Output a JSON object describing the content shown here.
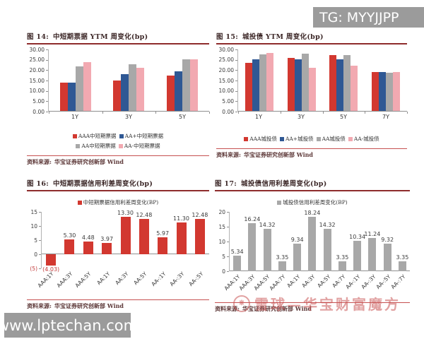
{
  "watermarks": {
    "top_right": "TG: MYYJJPP",
    "bottom_left": "www.lptechan.com",
    "bottom_right": "雪球—华宝财富魔方"
  },
  "colors": {
    "aaa_red": "#d23830",
    "aap_blue": "#2f5894",
    "aa_gray": "#a8a8a8",
    "aam_pink": "#f2a9b1",
    "title_rule": "#8e2c2c",
    "source_rule": "#c65050",
    "negative_label": "#c23b3b",
    "watermark_bg": "#9b9b9b",
    "watermark_text": "#ffffff"
  },
  "chart_data": [
    {
      "type": "bar",
      "fig_label": "图 14:",
      "title": "中短期票据 YTM 周变化(bp)",
      "categories": [
        "1Y",
        "3Y",
        "5Y"
      ],
      "series": [
        {
          "name": "AAA中短期票据",
          "color": "#d23830",
          "values": [
            14.0,
            15.0,
            17.4
          ]
        },
        {
          "name": "AA+中短期票据",
          "color": "#2f5894",
          "values": [
            14.0,
            18.0,
            19.3
          ]
        },
        {
          "name": "AA中短期票据",
          "color": "#a8a8a8",
          "values": [
            21.9,
            23.0,
            25.3
          ]
        },
        {
          "name": "AA-中短期票据",
          "color": "#f2a9b1",
          "values": [
            24.0,
            21.1,
            25.3
          ]
        }
      ],
      "ylim": [
        0,
        30
      ],
      "yticks": [
        {
          "v": 30,
          "label": "30.00"
        },
        {
          "v": 25,
          "label": "25.00"
        },
        {
          "v": 20,
          "label": "20.00"
        },
        {
          "v": 15,
          "label": "15.00"
        },
        {
          "v": 10,
          "label": "10.00"
        },
        {
          "v": 5,
          "label": "5.00"
        },
        {
          "v": 0,
          "label": "0.00"
        }
      ],
      "legend_rows": 2,
      "legend_position": "bottom",
      "grid": false,
      "source_label": "资料来源:",
      "source_text": "华宝证券研究创新部  Wind"
    },
    {
      "type": "bar",
      "fig_label": "图 15:",
      "title": "城投债 YTM 周变化(bp)",
      "categories": [
        "1Y",
        "3Y",
        "5Y",
        "7Y"
      ],
      "series": [
        {
          "name": "AAA城投债",
          "color": "#d23830",
          "values": [
            23.4,
            26.0,
            27.3,
            19.0
          ]
        },
        {
          "name": "AA+城投债",
          "color": "#2f5894",
          "values": [
            25.3,
            25.2,
            25.3,
            19.0
          ]
        },
        {
          "name": "AA城投债",
          "color": "#a8a8a8",
          "values": [
            27.5,
            27.9,
            27.2,
            18.8
          ]
        },
        {
          "name": "AA-城投债",
          "color": "#f2a9b1",
          "values": [
            28.3,
            21.1,
            22.3,
            19.0
          ]
        }
      ],
      "ylim": [
        0,
        30
      ],
      "yticks": [
        {
          "v": 30,
          "label": "30.00"
        },
        {
          "v": 25,
          "label": "25.00"
        },
        {
          "v": 20,
          "label": "20.00"
        },
        {
          "v": 15,
          "label": "15.00"
        },
        {
          "v": 10,
          "label": "10.00"
        },
        {
          "v": 5,
          "label": "5.00"
        },
        {
          "v": 0,
          "label": "0.00"
        }
      ],
      "legend_rows": 1,
      "legend_position": "bottom",
      "grid": false,
      "source_label": "资料来源:",
      "source_text": "华宝证券研究创新部  Wind"
    },
    {
      "type": "bar",
      "fig_label": "图 16:",
      "title": "中短期票据信用利差周变化(bp)",
      "legend": "中短期票据信用利差周变化(BP)",
      "bar_color": "#d23830",
      "categories": [
        "AAA:1Y",
        "AAA:3Y",
        "AAA:5Y",
        "AA:1Y",
        "AA:3Y",
        "AA:5Y",
        "AA-:1Y",
        "AA-:3Y",
        "AA-:5Y"
      ],
      "values": [
        -4.03,
        5.3,
        4.48,
        3.97,
        13.3,
        12.48,
        5.97,
        11.3,
        12.48
      ],
      "labels": [
        "(4.03)",
        "5.30",
        "4.48",
        "3.97",
        "13.30",
        "12.48",
        "5.97",
        "11.30",
        "12.48"
      ],
      "ylim": [
        -5,
        15
      ],
      "yticks": [
        {
          "v": 15,
          "label": "15"
        },
        {
          "v": 10,
          "label": "10"
        },
        {
          "v": 5,
          "label": "5"
        },
        {
          "v": 0,
          "label": "0"
        },
        {
          "v": -5,
          "label": "(5)"
        }
      ],
      "legend_position": "top",
      "grid": false,
      "source_label": "资料来源:",
      "source_text": "华宝证券研究创新部  Wind"
    },
    {
      "type": "bar",
      "fig_label": "图 17:",
      "title": "城投债信用利差周变化(bp)",
      "legend": "城投债信用利差周变化(BP)",
      "bar_color": "#a8a8a8",
      "categories": [
        "AAA:1Y",
        "AAA:3Y",
        "AAA:5Y",
        "AAA:7Y",
        "AA:1Y",
        "AA:3Y",
        "AA:5Y",
        "AA:7Y",
        "AA-:1Y",
        "AA-:3Y",
        "AA-:5Y",
        "AA-:7Y"
      ],
      "values": [
        5.34,
        16.24,
        14.32,
        3.35,
        9.34,
        18.24,
        14.32,
        3.35,
        10.34,
        11.24,
        9.32,
        3.35
      ],
      "labels": [
        "5.34",
        "16.24",
        "14.32",
        "3.35",
        "9.34",
        "18.24",
        "14.32",
        "3.35",
        "10.34",
        "11.24",
        "9.32",
        "3.35"
      ],
      "ylim": [
        0,
        20
      ],
      "yticks": [
        {
          "v": 20,
          "label": "20"
        },
        {
          "v": 15,
          "label": "15"
        },
        {
          "v": 10,
          "label": "10"
        },
        {
          "v": 5,
          "label": "5"
        },
        {
          "v": 0,
          "label": "0"
        }
      ],
      "legend_position": "top",
      "grid": false,
      "source_label": "资料来源:",
      "source_text": "华宝证券研究创新部  Wind"
    }
  ]
}
